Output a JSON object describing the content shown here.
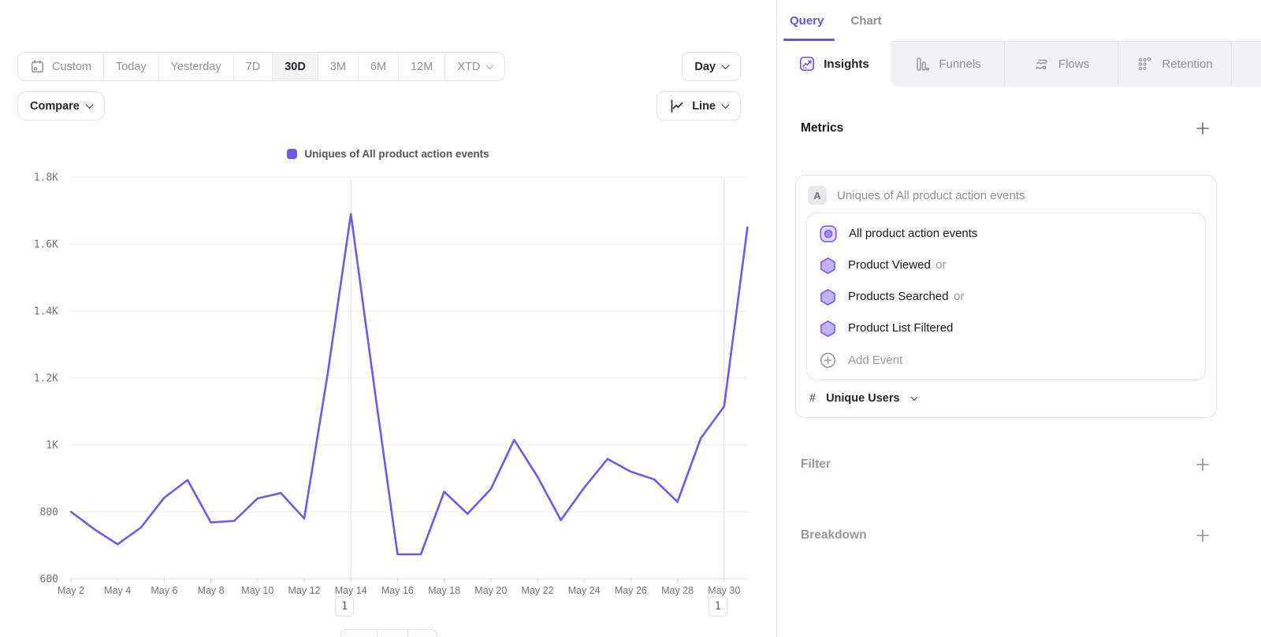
{
  "toolbar": {
    "ranges": [
      "Custom",
      "Today",
      "Yesterday",
      "7D",
      "30D",
      "3M",
      "6M",
      "12M",
      "XTD"
    ],
    "active_range": "30D",
    "compare_label": "Compare",
    "granularity_label": "Day",
    "chart_type_label": "Line"
  },
  "legend": {
    "label": "Uniques of All product action events",
    "color": "#6f5ae8"
  },
  "chart_data": {
    "type": "line",
    "title": "Uniques of All product action events",
    "x": [
      "May 2",
      "May 3",
      "May 4",
      "May 5",
      "May 6",
      "May 7",
      "May 8",
      "May 9",
      "May 10",
      "May 11",
      "May 12",
      "May 13",
      "May 14",
      "May 15",
      "May 16",
      "May 17",
      "May 18",
      "May 19",
      "May 20",
      "May 21",
      "May 22",
      "May 23",
      "May 24",
      "May 25",
      "May 26",
      "May 27",
      "May 28",
      "May 29",
      "May 30",
      "May 31"
    ],
    "values": [
      800,
      748,
      703,
      753,
      842,
      895,
      768,
      773,
      840,
      856,
      780,
      1210,
      1690,
      1175,
      673,
      673,
      860,
      794,
      868,
      1015,
      905,
      775,
      872,
      958,
      920,
      897,
      830,
      1020,
      1115,
      1650
    ],
    "series_name": "Uniques of All product action events",
    "line_color": "#6f5ae8",
    "ylim": [
      600,
      1800
    ],
    "yticks": [
      {
        "value": 600,
        "label": "600"
      },
      {
        "value": 800,
        "label": "800"
      },
      {
        "value": 1000,
        "label": "1K"
      },
      {
        "value": 1200,
        "label": "1.2K"
      },
      {
        "value": 1400,
        "label": "1.4K"
      },
      {
        "value": 1600,
        "label": "1.6K"
      },
      {
        "value": 1800,
        "label": "1.8K"
      }
    ],
    "xtick_every": 2,
    "grid": true,
    "legend_position": "top-center",
    "annotations": [
      {
        "date": "May 14",
        "label": "1"
      },
      {
        "date": "May 30",
        "label": "1"
      }
    ]
  },
  "panel": {
    "tabs": {
      "query": "Query",
      "chart": "Chart"
    },
    "views": [
      {
        "label": "Insights",
        "active": true
      },
      {
        "label": "Funnels",
        "active": false
      },
      {
        "label": "Flows",
        "active": false
      },
      {
        "label": "Retention",
        "active": false
      }
    ],
    "metrics": {
      "title": "Metrics",
      "metric": {
        "letter": "A",
        "summary": "Uniques of All product action events",
        "events": [
          {
            "name": "All product action events",
            "icon": "all-events-icon",
            "suffix": ""
          },
          {
            "name": "Product Viewed",
            "icon": "hexagon-icon",
            "suffix": "or"
          },
          {
            "name": "Products Searched",
            "icon": "hexagon-icon",
            "suffix": "or"
          },
          {
            "name": "Product List Filtered",
            "icon": "hexagon-icon",
            "suffix": ""
          }
        ],
        "add_event_label": "Add Event",
        "aggregation": {
          "symbol": "#",
          "label": "Unique Users"
        }
      }
    },
    "sections": [
      {
        "title": "Filter"
      },
      {
        "title": "Breakdown"
      }
    ]
  }
}
